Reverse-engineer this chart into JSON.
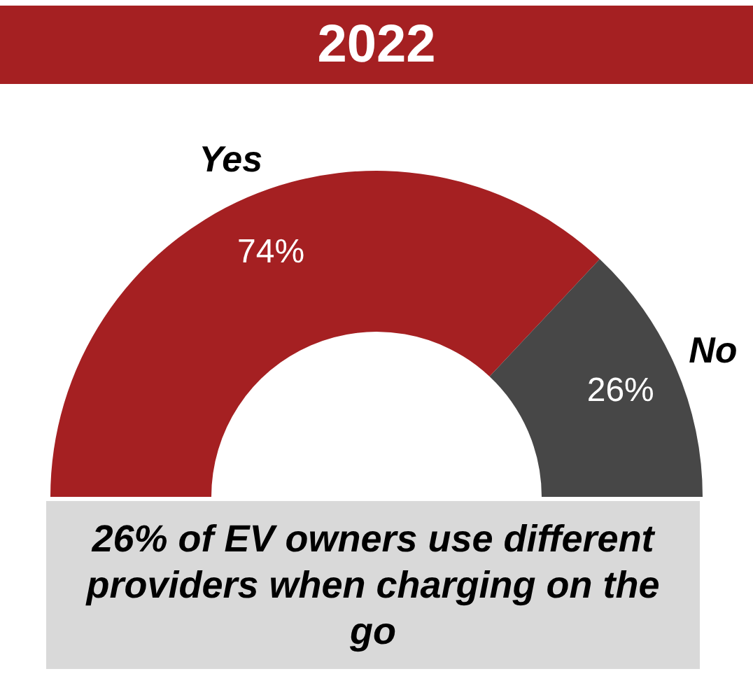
{
  "chart_data": {
    "type": "donut",
    "title": "2022",
    "categories": [
      "Yes",
      "No"
    ],
    "values": [
      74,
      26
    ],
    "colors": [
      "#a52022",
      "#474747"
    ],
    "value_labels": [
      "74%",
      "26%"
    ],
    "annotations": [
      "26% of EV owners use different providers when charging on the go"
    ]
  }
}
